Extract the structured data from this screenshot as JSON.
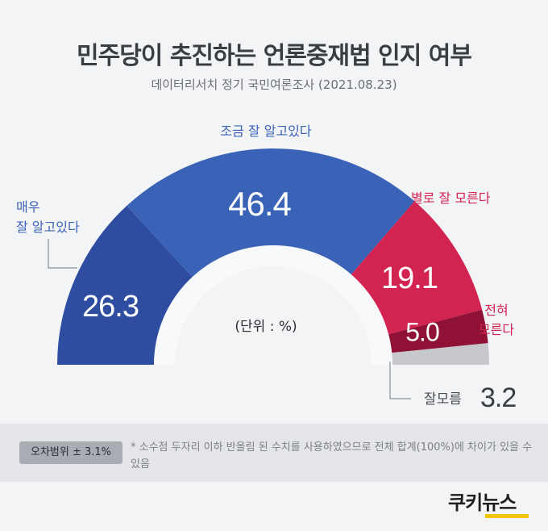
{
  "chart_data": {
    "type": "pie",
    "title": "민주당이 추진하는 언론중재법 인지 여부",
    "subtitle": "데이터리서치 정기 국민여론조사 (2021.08.23)",
    "unit_label": "(단위 : %)",
    "slices": [
      {
        "label": "매우\n잘 알고있다",
        "label_lines": [
          "매우",
          "잘 알고있다"
        ],
        "value": 26.3,
        "value_text": "26.3",
        "color": "#2f4da0"
      },
      {
        "label": "조금 잘 알고있다",
        "label_lines": [
          "조금 잘 알고있다"
        ],
        "value": 46.4,
        "value_text": "46.4",
        "color": "#3a63b8"
      },
      {
        "label": "별로 잘 모른다",
        "label_lines": [
          "별로 잘 모른다"
        ],
        "value": 19.1,
        "value_text": "19.1",
        "color": "#d32350"
      },
      {
        "label": "전혀\n모른다",
        "label_lines": [
          "전혀",
          "모른다"
        ],
        "value": 5.0,
        "value_text": "5.0",
        "color": "#8f1236"
      },
      {
        "label": "잘모름",
        "label_lines": [
          "잘모름"
        ],
        "value": 3.2,
        "value_text": "3.2",
        "color": "#c7c8cb"
      }
    ],
    "label_colors": {
      "blue": "#3a63b8",
      "red": "#d32350",
      "gray": "#4a4d52"
    }
  },
  "footer": {
    "margin_of_error": "오차범위 ± 3.1%",
    "note": "* 소수점 두자리 이하 반올림 된 수치를 사용하였으므로 전체 합계(100%)에 차이가 있을 수 있음"
  },
  "logo": {
    "text": "쿠키뉴스",
    "accent": "#f5c400"
  }
}
